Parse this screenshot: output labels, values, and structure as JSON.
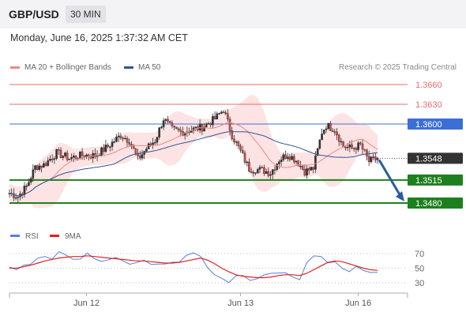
{
  "header": {
    "pair": "GBP/USD",
    "timeframe": "30 MIN"
  },
  "datetime": "Monday, June 16, 2025 1:37:32 AM CET",
  "legend": {
    "ma": "MA 20 + Bollinger Bands",
    "ma50": "MA 50"
  },
  "credit": "Research © 2025 Trading Central",
  "colors": {
    "ma20": "#ee8888",
    "ma50": "#2f5597",
    "resistance": "#e86b6b",
    "pivot": "#3b6fd6",
    "support": "#1e7f1e",
    "price": "#333333",
    "arrow": "#2a5d9b",
    "rsi": "#5a7fd8",
    "rsi_ma": "#dd2222"
  },
  "chart_data": [
    {
      "type": "candlestick",
      "title": "GBP/USD 30 MIN",
      "x_ticks": [
        "Jun 12",
        "Jun 13",
        "Jun 16"
      ],
      "ylim": [
        1.3445,
        1.368
      ],
      "levels": [
        {
          "value": 1.366,
          "label": "1.3660",
          "kind": "resistance"
        },
        {
          "value": 1.363,
          "label": "1.3630",
          "kind": "resistance"
        },
        {
          "value": 1.36,
          "label": "1.3600",
          "kind": "pivot"
        },
        {
          "value": 1.3548,
          "label": "1.3548",
          "kind": "last-price"
        },
        {
          "value": 1.3515,
          "label": "1.3515",
          "kind": "support"
        },
        {
          "value": 1.348,
          "label": "1.3480",
          "kind": "support"
        }
      ],
      "forecast_arrow": {
        "from": 1.3548,
        "to": 1.348,
        "direction": "down"
      },
      "close_path": [
        {
          "i": 0,
          "c": 1.3495
        },
        {
          "i": 4,
          "c": 1.349
        },
        {
          "i": 8,
          "c": 1.3505
        },
        {
          "i": 12,
          "c": 1.3535
        },
        {
          "i": 16,
          "c": 1.3538
        },
        {
          "i": 22,
          "c": 1.3556
        },
        {
          "i": 28,
          "c": 1.3548
        },
        {
          "i": 34,
          "c": 1.3553
        },
        {
          "i": 40,
          "c": 1.3552
        },
        {
          "i": 46,
          "c": 1.3566
        },
        {
          "i": 52,
          "c": 1.3583
        },
        {
          "i": 56,
          "c": 1.3575
        },
        {
          "i": 60,
          "c": 1.3546
        },
        {
          "i": 64,
          "c": 1.3563
        },
        {
          "i": 68,
          "c": 1.3575
        },
        {
          "i": 72,
          "c": 1.3608
        },
        {
          "i": 76,
          "c": 1.3592
        },
        {
          "i": 80,
          "c": 1.3588
        },
        {
          "i": 86,
          "c": 1.3592
        },
        {
          "i": 90,
          "c": 1.3595
        },
        {
          "i": 96,
          "c": 1.3608
        },
        {
          "i": 100,
          "c": 1.3622
        },
        {
          "i": 104,
          "c": 1.3583
        },
        {
          "i": 108,
          "c": 1.3558
        },
        {
          "i": 112,
          "c": 1.3532
        },
        {
          "i": 118,
          "c": 1.353
        },
        {
          "i": 122,
          "c": 1.3526
        },
        {
          "i": 126,
          "c": 1.3546
        },
        {
          "i": 130,
          "c": 1.3554
        },
        {
          "i": 134,
          "c": 1.3545
        },
        {
          "i": 138,
          "c": 1.3528
        },
        {
          "i": 142,
          "c": 1.3533
        },
        {
          "i": 146,
          "c": 1.3588
        },
        {
          "i": 148,
          "c": 1.3598
        },
        {
          "i": 152,
          "c": 1.3592
        },
        {
          "i": 156,
          "c": 1.3566
        },
        {
          "i": 160,
          "c": 1.3563
        },
        {
          "i": 164,
          "c": 1.3568
        },
        {
          "i": 168,
          "c": 1.3543
        },
        {
          "i": 172,
          "c": 1.3548
        }
      ]
    },
    {
      "type": "line",
      "title": "RSI",
      "series": [
        {
          "name": "RSI",
          "values": [
            49,
            47,
            55,
            58,
            62,
            66,
            64,
            70,
            67,
            63,
            65,
            69,
            63,
            61,
            59,
            64,
            61,
            58,
            56,
            61,
            57,
            53,
            55,
            59,
            61,
            66,
            71,
            68,
            48,
            40,
            37,
            33,
            38,
            40,
            35,
            33,
            40,
            44,
            46,
            42,
            38,
            36,
            55,
            66,
            67,
            60,
            57,
            50,
            47,
            50,
            46,
            45,
            47
          ]
        },
        {
          "name": "9MA",
          "values": [
            50,
            50,
            52,
            54,
            57,
            60,
            62,
            64,
            65,
            66,
            66,
            67,
            66,
            65,
            64,
            63,
            62,
            61,
            60,
            60,
            59,
            58,
            57,
            57,
            58,
            60,
            62,
            64,
            61,
            56,
            50,
            45,
            41,
            39,
            38,
            37,
            37,
            38,
            40,
            41,
            41,
            40,
            43,
            48,
            53,
            58,
            60,
            59,
            56,
            53,
            50,
            48,
            47
          ]
        }
      ],
      "ylim": [
        22,
        78
      ],
      "y_ticks": [
        70,
        50,
        30
      ]
    }
  ]
}
